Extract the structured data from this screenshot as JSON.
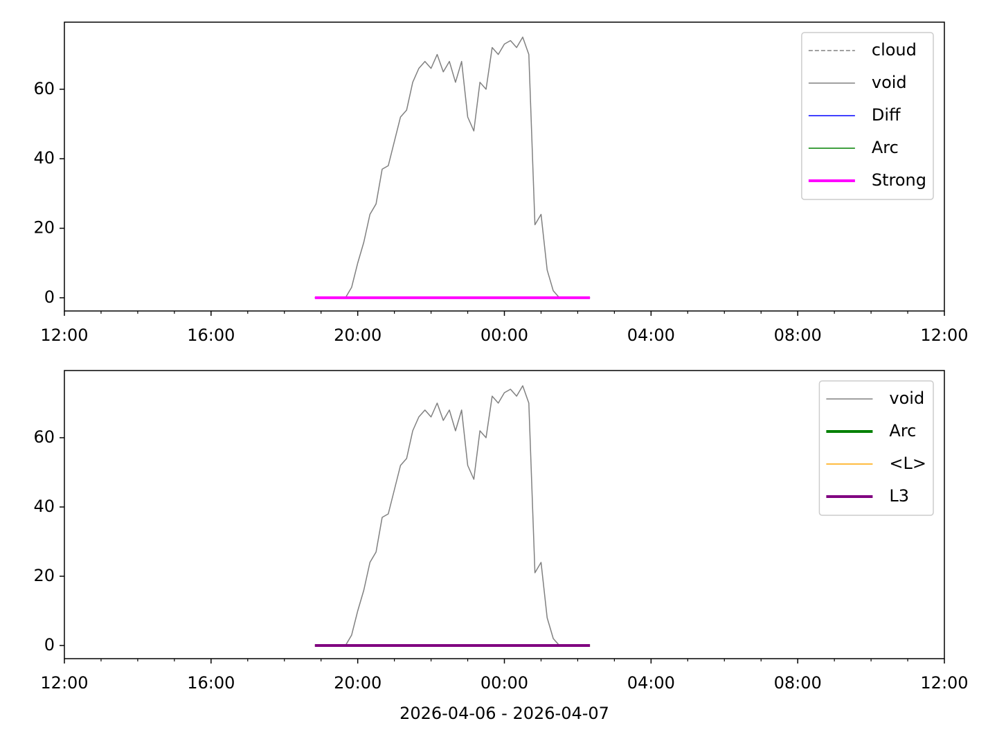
{
  "chart_data": [
    {
      "type": "line",
      "x": [
        "2026-04-06T18:50",
        "2026-04-06T19:00",
        "2026-04-06T19:10",
        "2026-04-06T19:20",
        "2026-04-06T19:30",
        "2026-04-06T19:40",
        "2026-04-06T19:50",
        "2026-04-06T20:00",
        "2026-04-06T20:10",
        "2026-04-06T20:20",
        "2026-04-06T20:30",
        "2026-04-06T20:40",
        "2026-04-06T20:50",
        "2026-04-06T21:00",
        "2026-04-06T21:10",
        "2026-04-06T21:20",
        "2026-04-06T21:30",
        "2026-04-06T21:40",
        "2026-04-06T21:50",
        "2026-04-06T22:00",
        "2026-04-06T22:10",
        "2026-04-06T22:20",
        "2026-04-06T22:30",
        "2026-04-06T22:40",
        "2026-04-06T22:50",
        "2026-04-06T23:00",
        "2026-04-06T23:10",
        "2026-04-06T23:20",
        "2026-04-06T23:30",
        "2026-04-06T23:40",
        "2026-04-06T23:50",
        "2026-04-07T00:00",
        "2026-04-07T00:10",
        "2026-04-07T00:20",
        "2026-04-07T00:30",
        "2026-04-07T00:40",
        "2026-04-07T00:50",
        "2026-04-07T01:00",
        "2026-04-07T01:10",
        "2026-04-07T01:20",
        "2026-04-07T01:30",
        "2026-04-07T01:40",
        "2026-04-07T01:50",
        "2026-04-07T02:00",
        "2026-04-07T02:10",
        "2026-04-07T02:20"
      ],
      "series": [
        {
          "name": "cloud",
          "color": "#808080",
          "linewidth": 1.5,
          "linestyle": "dashed",
          "values": [
            0,
            0,
            0,
            0,
            0,
            0,
            0,
            0,
            0,
            0,
            0,
            0,
            0,
            0,
            0,
            0,
            0,
            0,
            0,
            0,
            0,
            0,
            0,
            0,
            0,
            0,
            0,
            0,
            0,
            0,
            0,
            0,
            0,
            0,
            0,
            0,
            0,
            0,
            0,
            0,
            0,
            0,
            0,
            0,
            0,
            0
          ]
        },
        {
          "name": "void",
          "color": "#808080",
          "linewidth": 1.5,
          "linestyle": "solid",
          "values": [
            0,
            0,
            0,
            0,
            0,
            0,
            3,
            10,
            16,
            24,
            27,
            37,
            38,
            45,
            52,
            54,
            62,
            66,
            68,
            66,
            70,
            65,
            68,
            62,
            68,
            52,
            48,
            62,
            60,
            72,
            70,
            73,
            74,
            72,
            75,
            70,
            21,
            24,
            8,
            2,
            0,
            0,
            0,
            0,
            0,
            0
          ]
        },
        {
          "name": "Diff",
          "color": "#0000ff",
          "linewidth": 1.5,
          "linestyle": "solid",
          "values": [
            0,
            0,
            0,
            0,
            0,
            0,
            0,
            0,
            0,
            0,
            0,
            0,
            0,
            0,
            0,
            0,
            0,
            0,
            0,
            0,
            0,
            0,
            0,
            0,
            0,
            0,
            0,
            0,
            0,
            0,
            0,
            0,
            0,
            0,
            0,
            0,
            0,
            0,
            0,
            0,
            0,
            0,
            0,
            0,
            0,
            0
          ]
        },
        {
          "name": "Arc",
          "color": "#008000",
          "linewidth": 1.5,
          "linestyle": "solid",
          "values": [
            0,
            0,
            0,
            0,
            0,
            0,
            0,
            0,
            0,
            0,
            0,
            0,
            0,
            0,
            0,
            0,
            0,
            0,
            0,
            0,
            0,
            0,
            0,
            0,
            0,
            0,
            0,
            0,
            0,
            0,
            0,
            0,
            0,
            0,
            0,
            0,
            0,
            0,
            0,
            0,
            0,
            0,
            0,
            0,
            0,
            0
          ]
        },
        {
          "name": "Strong",
          "color": "#ff00ff",
          "linewidth": 4,
          "linestyle": "solid",
          "values": [
            0,
            0,
            0,
            0,
            0,
            0,
            0,
            0,
            0,
            0,
            0,
            0,
            0,
            0,
            0,
            0,
            0,
            0,
            0,
            0,
            0,
            0,
            0,
            0,
            0,
            0,
            0,
            0,
            0,
            0,
            0,
            0,
            0,
            0,
            0,
            0,
            0,
            0,
            0,
            0,
            0,
            0,
            0,
            0,
            0,
            0
          ]
        }
      ],
      "xlim": [
        "2026-04-06T12:00",
        "2026-04-07T12:00"
      ],
      "xticks": [
        {
          "value": "2026-04-06T12:00",
          "label": "12:00"
        },
        {
          "value": "2026-04-06T16:00",
          "label": "16:00"
        },
        {
          "value": "2026-04-06T20:00",
          "label": "20:00"
        },
        {
          "value": "2026-04-07T00:00",
          "label": "00:00"
        },
        {
          "value": "2026-04-07T04:00",
          "label": "04:00"
        },
        {
          "value": "2026-04-07T08:00",
          "label": "08:00"
        },
        {
          "value": "2026-04-07T12:00",
          "label": "12:00"
        }
      ],
      "xminorticks": [
        "2026-04-06T13:00",
        "2026-04-06T14:00",
        "2026-04-06T15:00",
        "2026-04-06T17:00",
        "2026-04-06T18:00",
        "2026-04-06T19:00",
        "2026-04-06T21:00",
        "2026-04-06T22:00",
        "2026-04-06T23:00",
        "2026-04-07T01:00",
        "2026-04-07T02:00",
        "2026-04-07T03:00",
        "2026-04-07T05:00",
        "2026-04-07T06:00",
        "2026-04-07T07:00",
        "2026-04-07T09:00",
        "2026-04-07T10:00",
        "2026-04-07T11:00"
      ],
      "ylim": [
        -3.8,
        79.3
      ],
      "yticks": [
        0,
        20,
        40,
        60
      ],
      "legend": "upper right"
    },
    {
      "type": "line",
      "x": [
        "2026-04-06T18:50",
        "2026-04-06T19:00",
        "2026-04-06T19:10",
        "2026-04-06T19:20",
        "2026-04-06T19:30",
        "2026-04-06T19:40",
        "2026-04-06T19:50",
        "2026-04-06T20:00",
        "2026-04-06T20:10",
        "2026-04-06T20:20",
        "2026-04-06T20:30",
        "2026-04-06T20:40",
        "2026-04-06T20:50",
        "2026-04-06T21:00",
        "2026-04-06T21:10",
        "2026-04-06T21:20",
        "2026-04-06T21:30",
        "2026-04-06T21:40",
        "2026-04-06T21:50",
        "2026-04-06T22:00",
        "2026-04-06T22:10",
        "2026-04-06T22:20",
        "2026-04-06T22:30",
        "2026-04-06T22:40",
        "2026-04-06T22:50",
        "2026-04-06T23:00",
        "2026-04-06T23:10",
        "2026-04-06T23:20",
        "2026-04-06T23:30",
        "2026-04-06T23:40",
        "2026-04-06T23:50",
        "2026-04-07T00:00",
        "2026-04-07T00:10",
        "2026-04-07T00:20",
        "2026-04-07T00:30",
        "2026-04-07T00:40",
        "2026-04-07T00:50",
        "2026-04-07T01:00",
        "2026-04-07T01:10",
        "2026-04-07T01:20",
        "2026-04-07T01:30",
        "2026-04-07T01:40",
        "2026-04-07T01:50",
        "2026-04-07T02:00",
        "2026-04-07T02:10",
        "2026-04-07T02:20"
      ],
      "series": [
        {
          "name": "void",
          "color": "#808080",
          "linewidth": 1.5,
          "linestyle": "solid",
          "values": [
            0,
            0,
            0,
            0,
            0,
            0,
            3,
            10,
            16,
            24,
            27,
            37,
            38,
            45,
            52,
            54,
            62,
            66,
            68,
            66,
            70,
            65,
            68,
            62,
            68,
            52,
            48,
            62,
            60,
            72,
            70,
            73,
            74,
            72,
            75,
            70,
            21,
            24,
            8,
            2,
            0,
            0,
            0,
            0,
            0,
            0
          ]
        },
        {
          "name": "Arc",
          "color": "#008000",
          "linewidth": 4,
          "linestyle": "solid",
          "values": [
            0,
            0,
            0,
            0,
            0,
            0,
            0,
            0,
            0,
            0,
            0,
            0,
            0,
            0,
            0,
            0,
            0,
            0,
            0,
            0,
            0,
            0,
            0,
            0,
            0,
            0,
            0,
            0,
            0,
            0,
            0,
            0,
            0,
            0,
            0,
            0,
            0,
            0,
            0,
            0,
            0,
            0,
            0,
            0,
            0,
            0
          ]
        },
        {
          "name": "<L>",
          "color": "#ffa500",
          "linewidth": 1.5,
          "linestyle": "solid",
          "values": [
            0,
            0,
            0,
            0,
            0,
            0,
            0,
            0,
            0,
            0,
            0,
            0,
            0,
            0,
            0,
            0,
            0,
            0,
            0,
            0,
            0,
            0,
            0,
            0,
            0,
            0,
            0,
            0,
            0,
            0,
            0,
            0,
            0,
            0,
            0,
            0,
            0,
            0,
            0,
            0,
            0,
            0,
            0,
            0,
            0,
            0
          ]
        },
        {
          "name": "L3",
          "color": "#800080",
          "linewidth": 4,
          "linestyle": "solid",
          "values": [
            0,
            0,
            0,
            0,
            0,
            0,
            0,
            0,
            0,
            0,
            0,
            0,
            0,
            0,
            0,
            0,
            0,
            0,
            0,
            0,
            0,
            0,
            0,
            0,
            0,
            0,
            0,
            0,
            0,
            0,
            0,
            0,
            0,
            0,
            0,
            0,
            0,
            0,
            0,
            0,
            0,
            0,
            0,
            0,
            0,
            0
          ]
        }
      ],
      "xlim": [
        "2026-04-06T12:00",
        "2026-04-07T12:00"
      ],
      "xticks": [
        {
          "value": "2026-04-06T12:00",
          "label": "12:00"
        },
        {
          "value": "2026-04-06T16:00",
          "label": "16:00"
        },
        {
          "value": "2026-04-06T20:00",
          "label": "20:00"
        },
        {
          "value": "2026-04-07T00:00",
          "label": "00:00"
        },
        {
          "value": "2026-04-07T04:00",
          "label": "04:00"
        },
        {
          "value": "2026-04-07T08:00",
          "label": "08:00"
        },
        {
          "value": "2026-04-07T12:00",
          "label": "12:00"
        }
      ],
      "xminorticks": [
        "2026-04-06T13:00",
        "2026-04-06T14:00",
        "2026-04-06T15:00",
        "2026-04-06T17:00",
        "2026-04-06T18:00",
        "2026-04-06T19:00",
        "2026-04-06T21:00",
        "2026-04-06T22:00",
        "2026-04-06T23:00",
        "2026-04-07T01:00",
        "2026-04-07T02:00",
        "2026-04-07T03:00",
        "2026-04-07T05:00",
        "2026-04-07T06:00",
        "2026-04-07T07:00",
        "2026-04-07T09:00",
        "2026-04-07T10:00",
        "2026-04-07T11:00"
      ],
      "ylim": [
        -3.8,
        79.4
      ],
      "yticks": [
        0,
        20,
        40,
        60
      ],
      "xlabel": "2026-04-06 - 2026-04-07",
      "legend": "upper right"
    }
  ]
}
